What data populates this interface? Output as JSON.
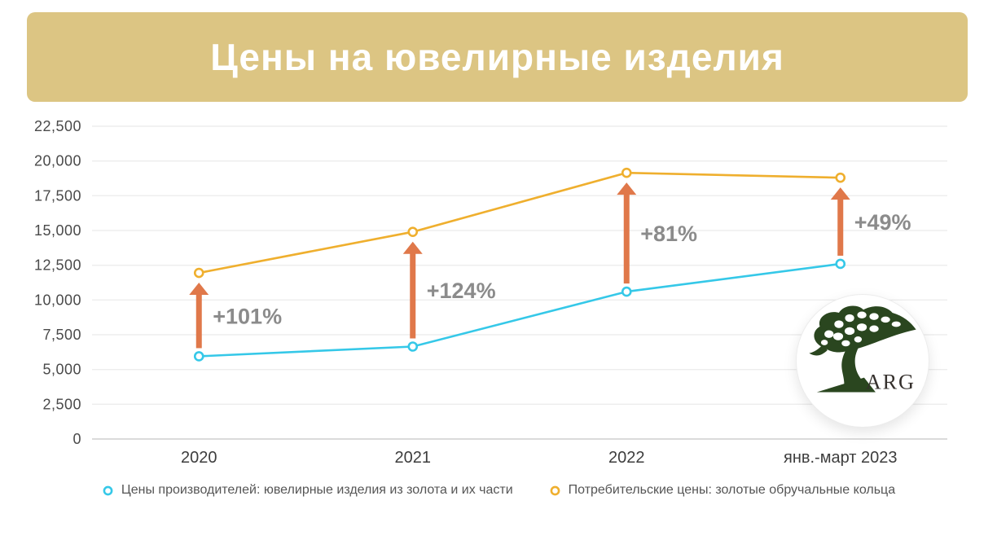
{
  "title": "Цены на ювелирные изделия",
  "logo": {
    "text": "ARG",
    "icon": "tree-icon"
  },
  "colors": {
    "banner_bg": "#dcc583",
    "title_text": "#ffffff",
    "producer_line": "#35c8e8",
    "consumer_line": "#efaf2e",
    "arrow": "#e0784a",
    "annotation_text": "#8b8b8b",
    "grid_line": "#ededed",
    "baseline": "#cfcfcf",
    "axis_text": "#4a4a4a",
    "xaxis_text": "#3d3d3d",
    "logo_tree_green": "#2a461f"
  },
  "chart_data": {
    "type": "line",
    "title": "Цены на ювелирные изделия",
    "categories": [
      "2020",
      "2021",
      "2022",
      "янв.-март 2023"
    ],
    "series": [
      {
        "name": "Цены производителей: ювелирные изделия из золота и их части",
        "key": "producer",
        "color": "#35c8e8",
        "values": [
          5950,
          6650,
          10600,
          12600
        ]
      },
      {
        "name": "Потребительские цены: золотые обручальные кольца",
        "key": "consumer",
        "color": "#efaf2e",
        "values": [
          11950,
          14900,
          19150,
          18800
        ]
      }
    ],
    "annotations": [
      {
        "category_index": 0,
        "label": "+101%"
      },
      {
        "category_index": 1,
        "label": "+124%"
      },
      {
        "category_index": 2,
        "label": "+81%"
      },
      {
        "category_index": 3,
        "label": "+49%"
      }
    ],
    "ylim": [
      0,
      22500
    ],
    "ytick_step": 2500,
    "ytick_labels": [
      "0",
      "2,500",
      "5,000",
      "7,500",
      "10,000",
      "12,500",
      "15,000",
      "17,500",
      "20,000",
      "22,500"
    ],
    "grid": true,
    "legend_position": "bottom"
  }
}
